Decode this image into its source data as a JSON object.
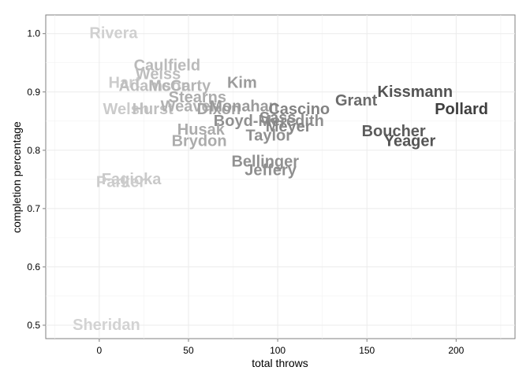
{
  "chart_data": {
    "type": "scatter",
    "title": "",
    "xlabel": "total throws",
    "ylabel": "completion percentage",
    "xlim": [
      -30,
      233
    ],
    "ylim": [
      0.477,
      1.032
    ],
    "x_ticks": [
      0,
      50,
      100,
      150,
      200
    ],
    "x_tick_labels": [
      "0",
      "50",
      "100",
      "150",
      "200"
    ],
    "y_ticks": [
      0.5,
      0.6,
      0.7,
      0.8,
      0.9,
      1.0
    ],
    "y_tick_labels": [
      "0.5",
      "0.6",
      "0.7",
      "0.8",
      "0.9",
      "1.0"
    ],
    "grid": true,
    "legend": "none",
    "points": [
      {
        "name": "Rivera",
        "x": 8,
        "y": 1.0
      },
      {
        "name": "Sheridan",
        "x": 4,
        "y": 0.5
      },
      {
        "name": "Caulfield",
        "x": 38,
        "y": 0.945
      },
      {
        "name": "Weiss",
        "x": 33,
        "y": 0.93
      },
      {
        "name": "Hart",
        "x": 14,
        "y": 0.915
      },
      {
        "name": "Adamson",
        "x": 31,
        "y": 0.91
      },
      {
        "name": "McCarty",
        "x": 45,
        "y": 0.91
      },
      {
        "name": "Kim",
        "x": 80,
        "y": 0.915
      },
      {
        "name": "Stearns",
        "x": 55,
        "y": 0.89
      },
      {
        "name": "Welsh",
        "x": 15,
        "y": 0.87
      },
      {
        "name": "Hurst",
        "x": 30,
        "y": 0.87
      },
      {
        "name": "Weaver",
        "x": 50,
        "y": 0.875
      },
      {
        "name": "Dixon",
        "x": 67,
        "y": 0.87
      },
      {
        "name": "Monahan",
        "x": 81,
        "y": 0.875
      },
      {
        "name": "Cascino",
        "x": 112,
        "y": 0.87
      },
      {
        "name": "Boyd-Meredith",
        "x": 95,
        "y": 0.85
      },
      {
        "name": "Sass",
        "x": 100,
        "y": 0.855
      },
      {
        "name": "Meyer",
        "x": 106,
        "y": 0.84
      },
      {
        "name": "Husak",
        "x": 57,
        "y": 0.835
      },
      {
        "name": "Taylor",
        "x": 95,
        "y": 0.825
      },
      {
        "name": "Brydon",
        "x": 56,
        "y": 0.815
      },
      {
        "name": "Grant",
        "x": 144,
        "y": 0.885
      },
      {
        "name": "Kissmann",
        "x": 177,
        "y": 0.9
      },
      {
        "name": "Pollard",
        "x": 203,
        "y": 0.87
      },
      {
        "name": "Boucher",
        "x": 165,
        "y": 0.832
      },
      {
        "name": "Yeager",
        "x": 174,
        "y": 0.815
      },
      {
        "name": "Bellinger",
        "x": 93,
        "y": 0.78
      },
      {
        "name": "Jeffery",
        "x": 96,
        "y": 0.765
      },
      {
        "name": "Fagioka",
        "x": 18,
        "y": 0.75
      },
      {
        "name": "Parker",
        "x": 12,
        "y": 0.745
      }
    ]
  }
}
